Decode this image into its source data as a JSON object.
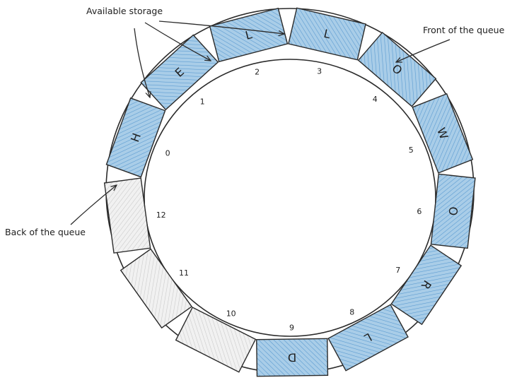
{
  "diagram": {
    "colors": {
      "filled": "#a9cde8",
      "filled_hatch": "#5b9bd1",
      "empty": "#f1f1f1",
      "empty_hatch": "#c8c8c8",
      "stroke": "#2b2b2b"
    },
    "slots": [
      {
        "index": "0",
        "letter": "H",
        "state": "filled"
      },
      {
        "index": "1",
        "letter": "E",
        "state": "filled"
      },
      {
        "index": "2",
        "letter": "L",
        "state": "filled"
      },
      {
        "index": "3",
        "letter": "L",
        "state": "filled"
      },
      {
        "index": "4",
        "letter": "O",
        "state": "filled"
      },
      {
        "index": "5",
        "letter": "W",
        "state": "filled"
      },
      {
        "index": "6",
        "letter": "O",
        "state": "filled"
      },
      {
        "index": "7",
        "letter": "R",
        "state": "filled"
      },
      {
        "index": "8",
        "letter": "L",
        "state": "filled"
      },
      {
        "index": "9",
        "letter": "D",
        "state": "filled"
      },
      {
        "index": "10",
        "letter": "",
        "state": "empty"
      },
      {
        "index": "11",
        "letter": "",
        "state": "empty"
      },
      {
        "index": "12",
        "letter": "",
        "state": "empty"
      }
    ],
    "annotations": {
      "available_storage": "Available storage",
      "front": "Front of the queue",
      "back": "Back of the queue"
    }
  }
}
